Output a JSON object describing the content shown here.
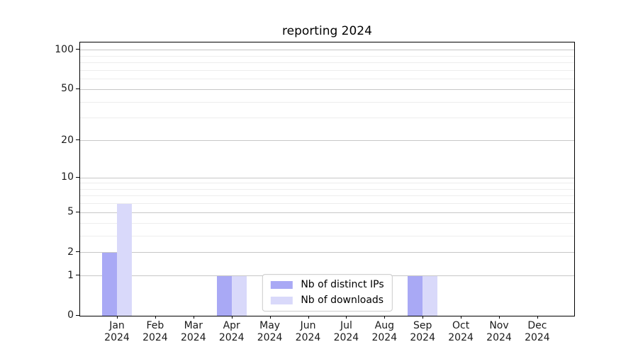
{
  "chart_data": {
    "type": "bar",
    "title": "reporting 2024",
    "categories": [
      "Jan 2024",
      "Feb 2024",
      "Mar 2024",
      "Apr 2024",
      "May 2024",
      "Jun 2024",
      "Jul 2024",
      "Aug 2024",
      "Sep 2024",
      "Oct 2024",
      "Nov 2024",
      "Dec 2024"
    ],
    "series": [
      {
        "name": "Nb of distinct IPs",
        "color": "#a9a9f5",
        "values": [
          2,
          0,
          0,
          1,
          0,
          0,
          0,
          0,
          1,
          0,
          0,
          0
        ]
      },
      {
        "name": "Nb of downloads",
        "color": "#d9d9fa",
        "values": [
          6,
          0,
          0,
          1,
          0,
          0,
          0,
          0,
          1,
          0,
          0,
          0
        ]
      }
    ],
    "yscale": "log1p",
    "ylim": [
      0,
      113
    ],
    "yticks": [
      0,
      1,
      2,
      5,
      10,
      20,
      50,
      100
    ],
    "ytick_labels": [
      "0",
      "1",
      "2",
      "5",
      "10",
      "20",
      "50",
      "100"
    ],
    "minor_yticks": [
      3,
      4,
      6,
      7,
      8,
      9,
      30,
      40,
      60,
      70,
      80,
      90
    ],
    "grid": true,
    "legend_position": "lower center"
  },
  "colors": {
    "grid_major": "#c7c7c7",
    "grid_minor": "#ededed",
    "spine": "#000000",
    "text": "#1a1a1a"
  }
}
